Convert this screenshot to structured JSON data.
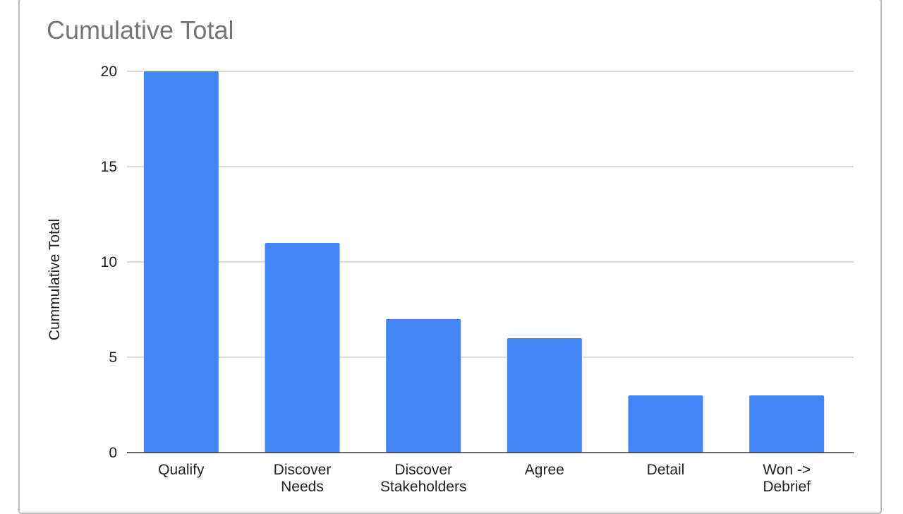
{
  "chart_data": {
    "type": "bar",
    "title": "Cumulative Total",
    "ylabel": "Cummulative Total",
    "xlabel": "",
    "categories": [
      [
        "Qualify"
      ],
      [
        "Discover",
        "Needs"
      ],
      [
        "Discover",
        "Stakeholders"
      ],
      [
        "Agree"
      ],
      [
        "Detail"
      ],
      [
        "Won ->",
        "Debrief"
      ]
    ],
    "values": [
      20,
      11,
      7,
      6,
      3,
      3
    ],
    "ylim": [
      0,
      20
    ],
    "yticks": [
      0,
      5,
      10,
      15,
      20
    ],
    "grid": true,
    "legend": "none",
    "colors": {
      "bar": "#4285f4",
      "grid": "#d3d3d3",
      "axis": "#333333"
    }
  }
}
